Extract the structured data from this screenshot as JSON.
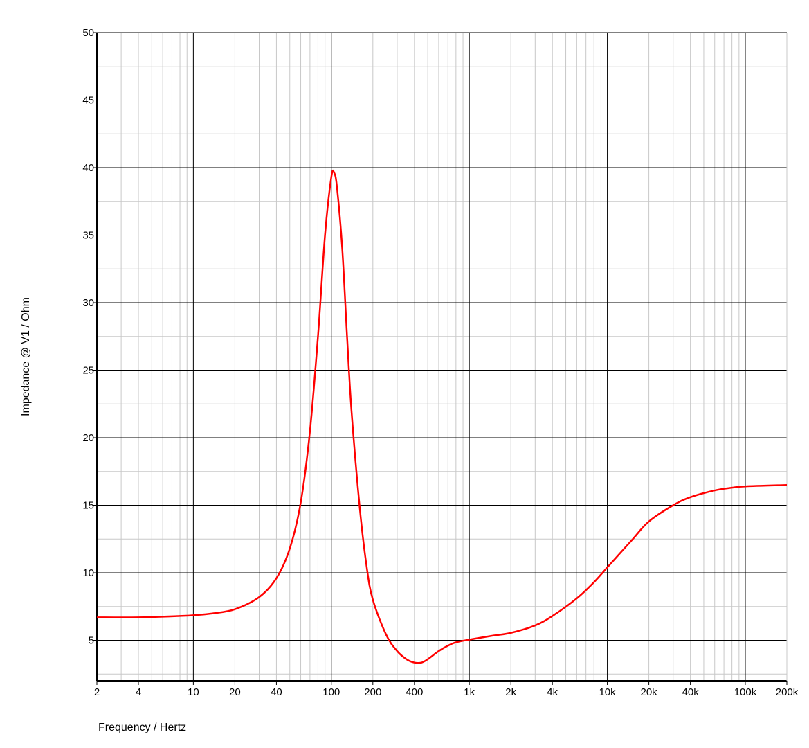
{
  "chart_data": {
    "type": "line",
    "title": "",
    "xlabel": "Frequency / Hertz",
    "ylabel": "Impedance @ V1 / Ohm",
    "x_scale": "log",
    "xlim": [
      2,
      200000
    ],
    "ylim": [
      2,
      50
    ],
    "grid": true,
    "x_ticks": [
      {
        "value": 2,
        "label": "2"
      },
      {
        "value": 4,
        "label": "4"
      },
      {
        "value": 10,
        "label": "10"
      },
      {
        "value": 20,
        "label": "20"
      },
      {
        "value": 40,
        "label": "40"
      },
      {
        "value": 100,
        "label": "100"
      },
      {
        "value": 200,
        "label": "200"
      },
      {
        "value": 400,
        "label": "400"
      },
      {
        "value": 1000,
        "label": "1k"
      },
      {
        "value": 2000,
        "label": "2k"
      },
      {
        "value": 4000,
        "label": "4k"
      },
      {
        "value": 10000,
        "label": "10k"
      },
      {
        "value": 20000,
        "label": "20k"
      },
      {
        "value": 40000,
        "label": "40k"
      },
      {
        "value": 100000,
        "label": "100k"
      },
      {
        "value": 200000,
        "label": "200k"
      }
    ],
    "y_ticks": [
      {
        "value": 5,
        "label": "5"
      },
      {
        "value": 10,
        "label": "10"
      },
      {
        "value": 15,
        "label": "15"
      },
      {
        "value": 20,
        "label": "20"
      },
      {
        "value": 25,
        "label": "25"
      },
      {
        "value": 30,
        "label": "30"
      },
      {
        "value": 35,
        "label": "35"
      },
      {
        "value": 40,
        "label": "40"
      },
      {
        "value": 45,
        "label": "45"
      },
      {
        "value": 50,
        "label": "50"
      }
    ],
    "series": [
      {
        "color": "#ff0000",
        "x": [
          2,
          4,
          8,
          10,
          14,
          20,
          30,
          40,
          50,
          60,
          70,
          80,
          90,
          100,
          105,
          110,
          120,
          130,
          140,
          160,
          180,
          200,
          250,
          300,
          350,
          400,
          450,
          500,
          600,
          700,
          800,
          1000,
          1500,
          2000,
          3000,
          4000,
          6000,
          8000,
          10000,
          15000,
          20000,
          30000,
          40000,
          60000,
          80000,
          100000,
          200000
        ],
        "y": [
          6.7,
          6.7,
          6.8,
          6.85,
          7.0,
          7.3,
          8.2,
          9.6,
          11.8,
          15.2,
          20.5,
          27.5,
          35.0,
          39.3,
          39.6,
          38.5,
          34.0,
          27.5,
          22.0,
          15.0,
          10.5,
          8.0,
          5.4,
          4.2,
          3.6,
          3.35,
          3.35,
          3.6,
          4.2,
          4.6,
          4.85,
          5.05,
          5.35,
          5.55,
          6.1,
          6.8,
          8.1,
          9.3,
          10.4,
          12.4,
          13.8,
          15.0,
          15.6,
          16.1,
          16.3,
          16.4,
          16.5
        ]
      }
    ]
  }
}
